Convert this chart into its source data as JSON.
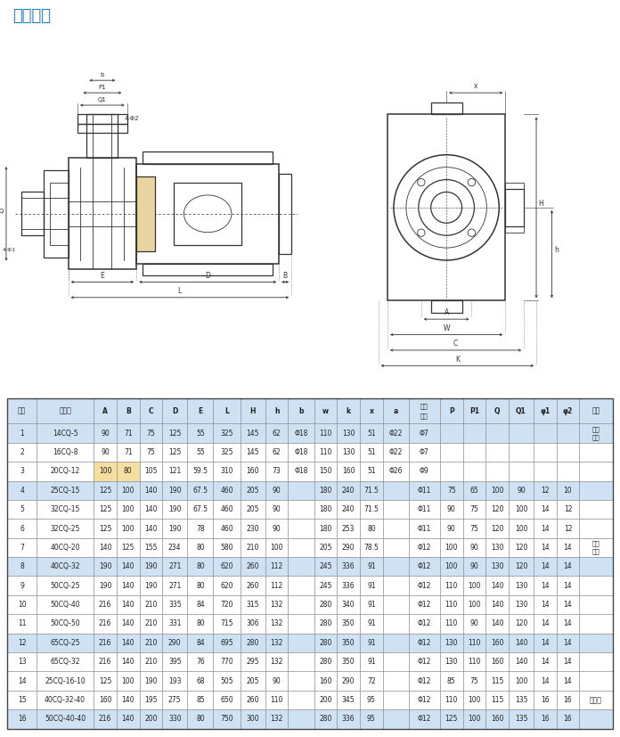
{
  "title": "安装尺寸",
  "title_color": "#1a7abf",
  "title_fontsize": 13,
  "table_header": [
    "序号",
    "规　格",
    "A",
    "B",
    "C",
    "D",
    "E",
    "L",
    "H",
    "h",
    "b",
    "w",
    "k",
    "x",
    "a",
    "机座\n螺孔",
    "P",
    "P1",
    "Q",
    "Q1",
    "φ1",
    "φ2",
    "备注"
  ],
  "table_data": [
    [
      "1",
      "14CQ-5",
      "90",
      "71",
      "75",
      "125",
      "55",
      "325",
      "145",
      "62",
      "Φ18",
      "110",
      "130",
      "51",
      "Φ22",
      "Φ7",
      "",
      "",
      "",
      "",
      "",
      "",
      "管子\n连接"
    ],
    [
      "2",
      "16CQ-8",
      "90",
      "71",
      "75",
      "125",
      "55",
      "325",
      "145",
      "62",
      "Φ18",
      "110",
      "130",
      "51",
      "Φ22",
      "Φ7",
      "",
      "",
      "",
      "",
      "",
      "",
      ""
    ],
    [
      "3",
      "20CQ-12",
      "100",
      "80",
      "105",
      "121",
      "59.5",
      "310",
      "160",
      "73",
      "Φ18",
      "150",
      "160",
      "51",
      "Φ26",
      "Φ9",
      "",
      "",
      "",
      "",
      "",
      "",
      ""
    ],
    [
      "4",
      "25CQ-15",
      "125",
      "100",
      "140",
      "190",
      "67.5",
      "460",
      "205",
      "90",
      "",
      "180",
      "240",
      "71.5",
      "",
      "Φ11",
      "75",
      "65",
      "100",
      "90",
      "12",
      "10",
      ""
    ],
    [
      "5",
      "32CQ-15",
      "125",
      "100",
      "140",
      "190",
      "67.5",
      "460",
      "205",
      "90",
      "",
      "180",
      "240",
      "71.5",
      "",
      "Φ11",
      "90",
      "75",
      "120",
      "100",
      "14",
      "12",
      ""
    ],
    [
      "6",
      "32CQ-25",
      "125",
      "100",
      "140",
      "190",
      "78",
      "460",
      "230",
      "90",
      "",
      "180",
      "253",
      "80",
      "",
      "Φ11",
      "90",
      "75",
      "120",
      "100",
      "14",
      "12",
      ""
    ],
    [
      "7",
      "40CQ-20",
      "140",
      "125",
      "155",
      "234",
      "80",
      "580",
      "210",
      "100",
      "",
      "205",
      "290",
      "78.5",
      "",
      "Φ12",
      "100",
      "90",
      "130",
      "120",
      "14",
      "14",
      "法兰\n连接"
    ],
    [
      "8",
      "40CQ-32",
      "190",
      "140",
      "190",
      "271",
      "80",
      "620",
      "260",
      "112",
      "",
      "245",
      "336",
      "91",
      "",
      "Φ12",
      "100",
      "90",
      "130",
      "120",
      "14",
      "14",
      ""
    ],
    [
      "9",
      "50CQ-25",
      "190",
      "140",
      "190",
      "271",
      "80",
      "620",
      "260",
      "112",
      "",
      "245",
      "336",
      "91",
      "",
      "Φ12",
      "110",
      "100",
      "140",
      "130",
      "14",
      "14",
      ""
    ],
    [
      "10",
      "50CQ-40",
      "216",
      "140",
      "210",
      "335",
      "84",
      "720",
      "315",
      "132",
      "",
      "280",
      "340",
      "91",
      "",
      "Φ12",
      "110",
      "100",
      "140",
      "130",
      "14",
      "14",
      ""
    ],
    [
      "11",
      "50CQ-50",
      "216",
      "140",
      "210",
      "331",
      "80",
      "715",
      "306",
      "132",
      "",
      "280",
      "350",
      "91",
      "",
      "Φ12",
      "110",
      "90",
      "140",
      "120",
      "14",
      "14",
      ""
    ],
    [
      "12",
      "65CQ-25",
      "216",
      "140",
      "210",
      "290",
      "84",
      "695",
      "280",
      "132",
      "",
      "280",
      "350",
      "91",
      "",
      "Φ12",
      "130",
      "110",
      "160",
      "140",
      "14",
      "14",
      ""
    ],
    [
      "13",
      "65CQ-32",
      "216",
      "140",
      "210",
      "395",
      "76",
      "770",
      "295",
      "132",
      "",
      "280",
      "350",
      "91",
      "",
      "Φ12",
      "130",
      "110",
      "160",
      "140",
      "14",
      "14",
      ""
    ],
    [
      "14",
      "25CQ-16-10",
      "125",
      "100",
      "190",
      "193",
      "68",
      "505",
      "205",
      "90",
      "",
      "160",
      "290",
      "72",
      "",
      "Φ12",
      "85",
      "75",
      "115",
      "100",
      "14",
      "14",
      ""
    ],
    [
      "15",
      "40CQ-32-40",
      "160",
      "140",
      "195",
      "275",
      "85",
      "650",
      "260",
      "110",
      "",
      "200",
      "345",
      "95",
      "",
      "Φ12",
      "110",
      "100",
      "115",
      "135",
      "16",
      "16",
      "高压泵"
    ],
    [
      "16",
      "50CQ-40-40",
      "216",
      "140",
      "200",
      "330",
      "80",
      "750",
      "300",
      "132",
      "",
      "280",
      "336",
      "95",
      "",
      "Φ12",
      "125",
      "100",
      "160",
      "135",
      "16",
      "16",
      ""
    ]
  ],
  "highlight_rows": [
    0,
    3,
    7,
    11,
    15
  ],
  "highlight_color": "#cfe2f3",
  "header_bg": "#cfe2f3",
  "special_cells": [
    [
      2,
      2
    ],
    [
      2,
      3
    ]
  ],
  "special_color": "#f5dfa0",
  "border_color": "#666666",
  "text_color": "#222222",
  "drawing_color": "#333333",
  "bg_color": "#ffffff"
}
